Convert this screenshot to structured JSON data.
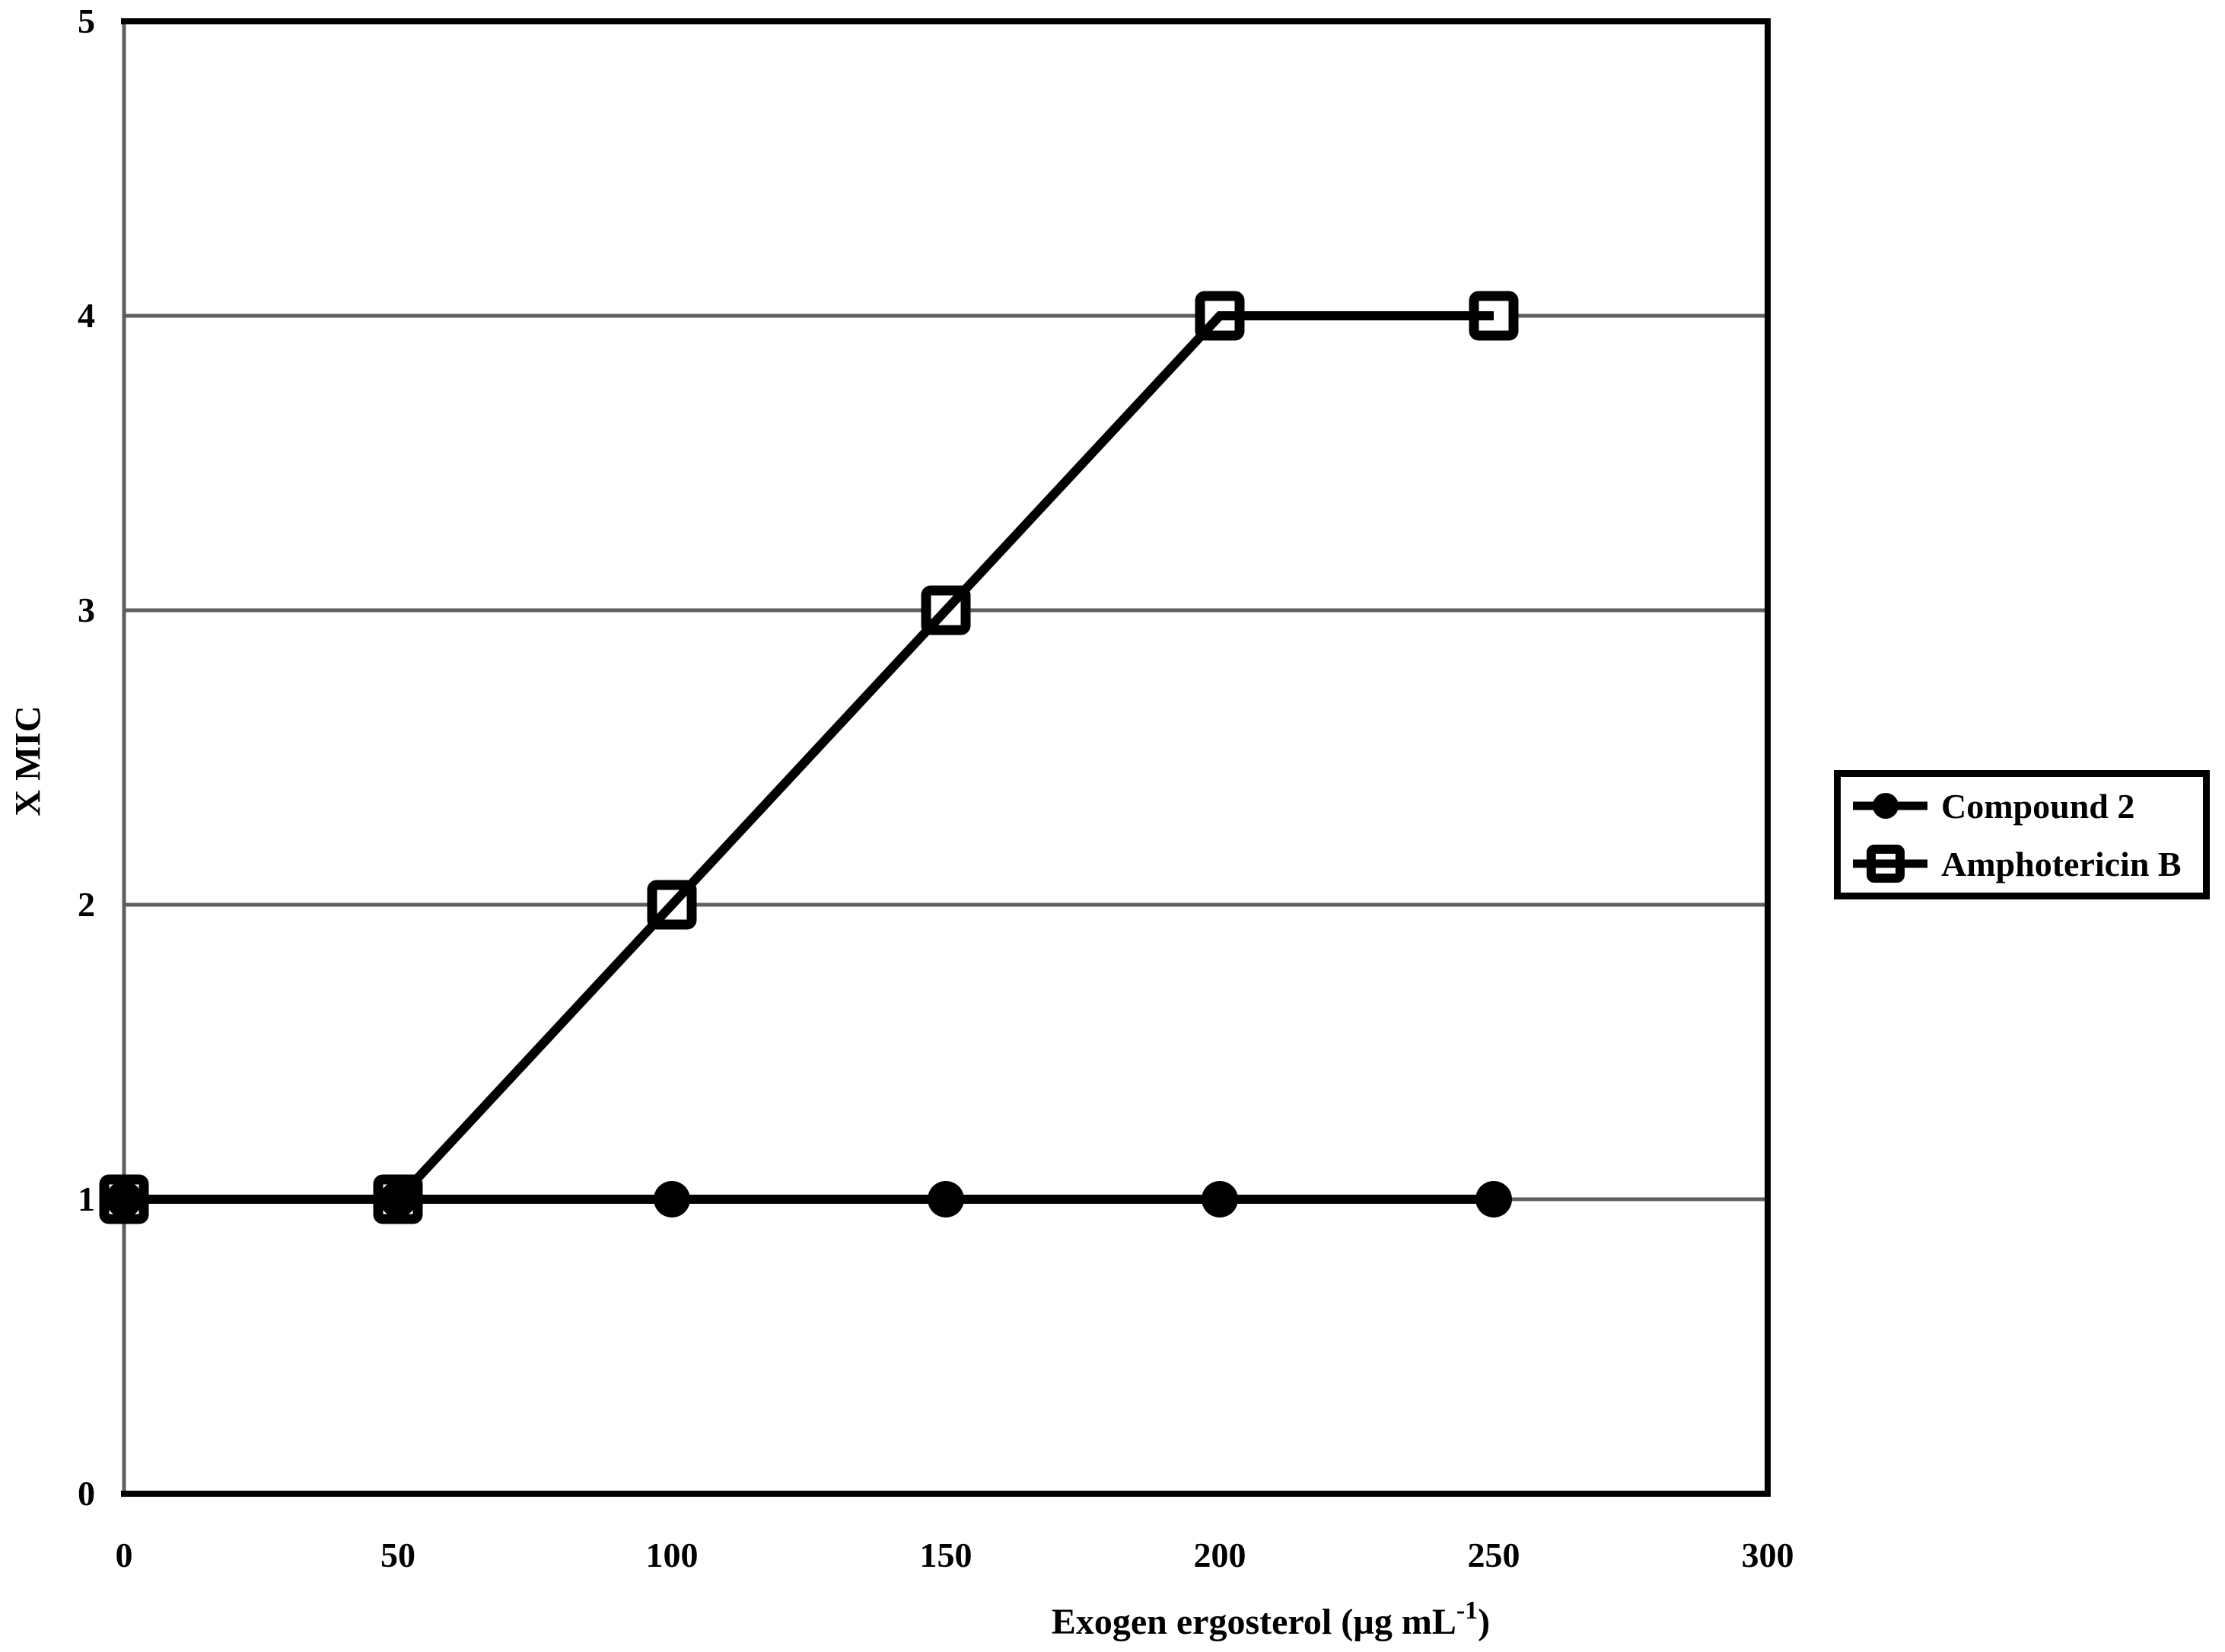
{
  "figure": {
    "background": "#ffffff"
  },
  "chart_data": {
    "type": "line",
    "title": "",
    "xlabel": "Exogen ergosterol (µg mL-1)",
    "xlabel_parts": {
      "prefix": "Exogen ergosterol (µg mL",
      "superscript": "-1",
      "suffix": ")"
    },
    "ylabel": "X MIC",
    "x": [
      0,
      50,
      100,
      150,
      200,
      250
    ],
    "series": [
      {
        "name": "Compound 2",
        "marker": "filled-circle",
        "color": "#000000",
        "values": [
          1,
          1,
          1,
          1,
          1,
          1
        ]
      },
      {
        "name": "Amphotericin B",
        "marker": "open-square",
        "color": "#000000",
        "values": [
          1,
          1,
          2,
          3,
          4,
          4
        ]
      }
    ],
    "xlim": [
      0,
      300
    ],
    "ylim": [
      0,
      5
    ],
    "xticks": [
      0,
      50,
      100,
      150,
      200,
      250,
      300
    ],
    "yticks": [
      0,
      1,
      2,
      3,
      4,
      5
    ],
    "gridlines_y": [
      1,
      2,
      3,
      4
    ],
    "grid_on": true,
    "grid_color": "#5f5f5f",
    "frame_color": "#000000",
    "legend_position": "right-outside"
  }
}
